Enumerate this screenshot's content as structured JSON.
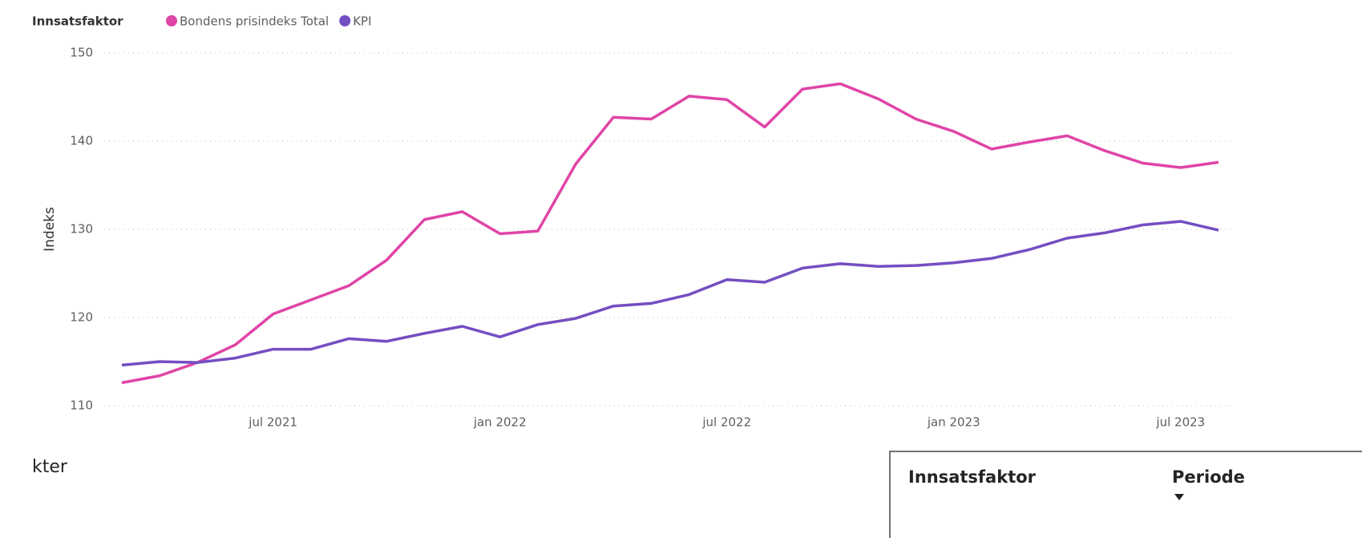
{
  "chart_data": {
    "type": "line",
    "legend_title": "Innsatsfaktor",
    "ylabel": "Indeks",
    "x": [
      "2021-03",
      "2021-04",
      "2021-05",
      "2021-06",
      "2021-07",
      "2021-08",
      "2021-09",
      "2021-10",
      "2021-11",
      "2021-12",
      "2022-01",
      "2022-02",
      "2022-03",
      "2022-04",
      "2022-05",
      "2022-06",
      "2022-07",
      "2022-08",
      "2022-09",
      "2022-10",
      "2022-11",
      "2022-12",
      "2023-01",
      "2023-02",
      "2023-03",
      "2023-04",
      "2023-05",
      "2023-06",
      "2023-07",
      "2023-08"
    ],
    "series": [
      {
        "name": "Bondens prisindeks Total",
        "color": "#e044a7",
        "values": [
          112.6,
          113.4,
          114.9,
          116.9,
          120.4,
          122.0,
          123.6,
          126.5,
          131.1,
          132.0,
          129.5,
          129.8,
          137.4,
          142.7,
          142.5,
          145.1,
          144.7,
          141.6,
          145.9,
          146.5,
          144.8,
          142.5,
          141.1,
          139.1,
          139.9,
          140.6,
          138.9,
          137.5,
          137.0,
          137.6
        ]
      },
      {
        "name": "KPI",
        "color": "#744ec2",
        "values": [
          114.6,
          115.0,
          114.9,
          115.4,
          116.4,
          116.4,
          117.6,
          117.3,
          118.2,
          119.0,
          117.8,
          119.2,
          119.9,
          121.3,
          121.6,
          122.6,
          124.3,
          124.0,
          125.6,
          126.1,
          125.8,
          125.9,
          126.2,
          126.7,
          127.7,
          129.0,
          129.6,
          130.5,
          130.9,
          129.9
        ]
      }
    ],
    "xlim": [
      "2021-03",
      "2023-08"
    ],
    "xticks": [
      {
        "value": "2021-07",
        "label": "jul 2021"
      },
      {
        "value": "2022-01",
        "label": "jan 2022"
      },
      {
        "value": "2022-07",
        "label": "jul 2022"
      },
      {
        "value": "2023-01",
        "label": "jan 2023"
      },
      {
        "value": "2023-07",
        "label": "jul 2023"
      }
    ],
    "ylim": [
      110,
      150
    ],
    "yticks": [
      110,
      120,
      130,
      140,
      150
    ],
    "grid": true
  },
  "lower": {
    "left_heading": "kter",
    "table": {
      "headers": [
        "Innsatsfaktor",
        "Periode"
      ]
    }
  }
}
